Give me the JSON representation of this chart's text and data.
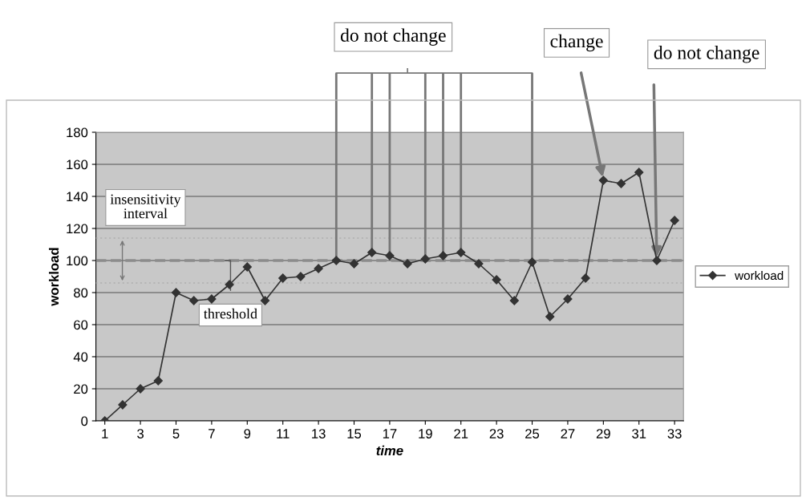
{
  "chart_data": {
    "type": "line",
    "xlabel": "time",
    "ylabel": "workload",
    "x": [
      1,
      2,
      3,
      4,
      5,
      6,
      7,
      8,
      9,
      10,
      11,
      12,
      13,
      14,
      15,
      16,
      17,
      18,
      19,
      20,
      21,
      22,
      23,
      24,
      25,
      26,
      27,
      28,
      29,
      30,
      31,
      32,
      33
    ],
    "series": [
      {
        "name": "workload",
        "color": "#333333",
        "values": [
          0,
          10,
          20,
          25,
          80,
          75,
          76,
          85,
          96,
          75,
          89,
          90,
          95,
          100,
          98,
          105,
          103,
          98,
          101,
          103,
          105,
          98,
          88,
          75,
          99,
          65,
          76,
          89,
          150,
          148,
          155,
          100,
          125
        ]
      }
    ],
    "xlim": [
      0.5,
      33.5
    ],
    "xticks": [
      1,
      3,
      5,
      7,
      9,
      11,
      13,
      15,
      17,
      19,
      21,
      23,
      25,
      27,
      29,
      31,
      33
    ],
    "ylim": [
      0,
      180
    ],
    "yticks": [
      0,
      20,
      40,
      60,
      80,
      100,
      120,
      140,
      160,
      180
    ],
    "grid": "y",
    "legend": "right",
    "marker": "diamond",
    "line_style": "solid",
    "ref_lines": [
      {
        "axis": "y",
        "value": 100,
        "label": "threshold",
        "color": "#8c8c8c",
        "line_style": "dashed"
      },
      {
        "axis": "y",
        "value": 86,
        "color": "#b5b5b5",
        "line_style": "dotted"
      },
      {
        "axis": "y",
        "value": 114,
        "color": "#b5b5b5",
        "line_style": "dotted"
      },
      {
        "axis": "x",
        "value": 14,
        "color": "#777777",
        "line_style": "solid"
      },
      {
        "axis": "x",
        "value": 16,
        "color": "#777777",
        "line_style": "solid"
      },
      {
        "axis": "x",
        "value": 17,
        "color": "#777777",
        "line_style": "solid"
      },
      {
        "axis": "x",
        "value": 19,
        "color": "#777777",
        "line_style": "solid"
      },
      {
        "axis": "x",
        "value": 20,
        "color": "#777777",
        "line_style": "solid"
      },
      {
        "axis": "x",
        "value": 21,
        "color": "#777777",
        "line_style": "solid"
      },
      {
        "axis": "x",
        "value": 25,
        "color": "#777777",
        "line_style": "solid"
      }
    ],
    "annotations": [
      "do not change",
      "insensitivity interval",
      {
        "text": "change",
        "x": 29,
        "y": 150
      },
      {
        "text": "do not change",
        "x": 32,
        "y": 100
      }
    ]
  }
}
